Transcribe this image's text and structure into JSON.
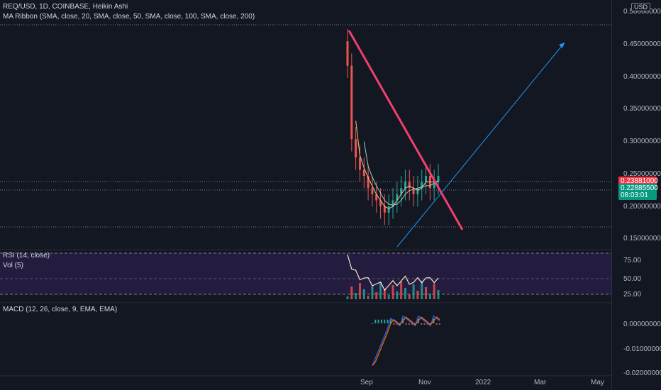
{
  "header": {
    "symbol_line": "REQ/USD, 1D, COINBASE, Heikin Ashi",
    "indicator_ma": "MA Ribbon (SMA, close, 20, SMA, close, 50, SMA, close, 100, SMA, close, 200)",
    "currency_button": "USD"
  },
  "price_axis": {
    "ticks": [
      "0.50000000",
      "0.45000000",
      "0.40000000",
      "0.35000000",
      "0.30000000",
      "0.25000000",
      "0.20000000",
      "0.15000000"
    ],
    "current_price": "0.23881000",
    "ma_price": "0.22885500",
    "countdown": "08:03:01"
  },
  "rsi_pane": {
    "label": "RSI (14, close)",
    "vol_label": "Vol (5)",
    "ticks": [
      "75.00",
      "50.00",
      "25.00"
    ]
  },
  "macd_pane": {
    "label": "MACD (12, 26, close, 9, EMA, EMA)",
    "ticks": [
      "0.00000000",
      "-0.01000000",
      "-0.02000000"
    ]
  },
  "time_axis": {
    "labels": [
      "Sep",
      "Nov",
      "2022",
      "Mar",
      "May"
    ]
  },
  "colors": {
    "background": "#131722",
    "up": "#26a69a",
    "down": "#ef5350",
    "trendline_down": "#f23f6c",
    "trendline_up": "#2196f3",
    "rsi_bg": "#2a1f4a",
    "price_tag_red": "#f23645",
    "price_tag_teal": "#089981"
  },
  "chart_data": {
    "type": "line",
    "title": "REQ/USD, 1D, COINBASE, Heikin Ashi",
    "price_ylim": [
      0.13,
      0.51
    ],
    "approx_close_series": [
      0.42,
      0.3,
      0.27,
      0.25,
      0.24,
      0.22,
      0.21,
      0.2,
      0.19,
      0.18,
      0.19,
      0.2,
      0.21,
      0.22,
      0.23,
      0.22,
      0.21,
      0.22,
      0.23,
      0.24,
      0.22,
      0.23,
      0.24
    ],
    "rsi_ylim": [
      25,
      75
    ],
    "macd_ylim": [
      -0.02,
      0.005
    ]
  }
}
